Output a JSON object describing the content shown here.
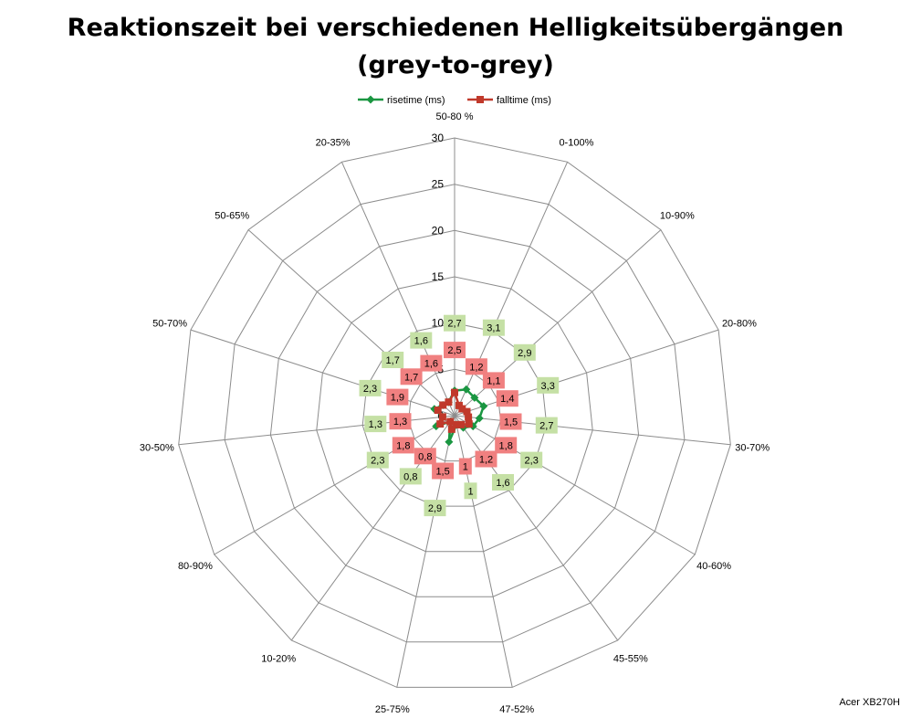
{
  "title_line1": "Reaktionszeit bei verschiedenen Helligkeitsübergängen",
  "title_line2": "(grey-to-grey)",
  "credit": "Acer XB270H",
  "chart_data": {
    "type": "radar",
    "categories": [
      "50-80 %",
      "0-100%",
      "10-90%",
      "20-80%",
      "30-70%",
      "40-60%",
      "45-55%",
      "47-52%",
      "25-75%",
      "10-20%",
      "80-90%",
      "30-50%",
      "50-70%",
      "50-65%",
      "20-35%"
    ],
    "rlim": [
      0,
      30
    ],
    "ticks": [
      0,
      5,
      10,
      15,
      20,
      25,
      30
    ],
    "grid": true,
    "legend_position": "top",
    "series": [
      {
        "name": "risetime (ms)",
        "color": "#1a9641",
        "label_bg": "#c5e0a5",
        "values": [
          2.7,
          3.1,
          2.9,
          3.3,
          2.7,
          2.3,
          1.6,
          1.0,
          2.9,
          0.8,
          2.3,
          1.3,
          2.3,
          1.7,
          1.6
        ],
        "labels": [
          "2,7",
          "3,1",
          "2,9",
          "3,3",
          "2,7",
          "2,3",
          "1,6",
          "1",
          "2,9",
          "0,8",
          "2,3",
          "1,3",
          "2,3",
          "1,7",
          "1,6"
        ]
      },
      {
        "name": "falltime (ms)",
        "color": "#c0392b",
        "label_bg": "#f08080",
        "values": [
          2.5,
          1.2,
          1.1,
          1.4,
          1.5,
          1.8,
          1.2,
          1.0,
          1.5,
          0.8,
          1.8,
          1.3,
          1.9,
          1.7,
          1.6
        ],
        "labels": [
          "2,5",
          "1,2",
          "1,1",
          "1,4",
          "1,5",
          "1,8",
          "1,2",
          "1",
          "1,5",
          "0,8",
          "1,8",
          "1,3",
          "1,9",
          "1,7",
          "1,6"
        ]
      }
    ]
  }
}
